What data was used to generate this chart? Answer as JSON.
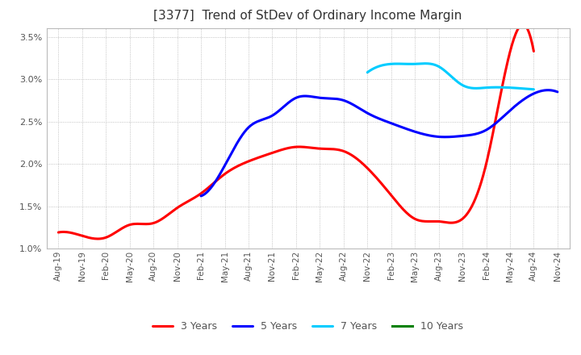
{
  "title": "[3377]  Trend of StDev of Ordinary Income Margin",
  "ylim": [
    0.01,
    0.036
  ],
  "yticks": [
    0.01,
    0.015,
    0.02,
    0.025,
    0.03,
    0.035
  ],
  "x_labels": [
    "Aug-19",
    "Nov-19",
    "Feb-20",
    "May-20",
    "Aug-20",
    "Nov-20",
    "Feb-21",
    "May-21",
    "Aug-21",
    "Nov-21",
    "Feb-22",
    "May-22",
    "Aug-22",
    "Nov-22",
    "Feb-23",
    "May-23",
    "Aug-23",
    "Nov-23",
    "Feb-24",
    "May-24",
    "Aug-24",
    "Nov-24"
  ],
  "s3y_x": [
    0,
    1,
    2,
    3,
    4,
    5,
    6,
    7,
    8,
    9,
    10,
    11,
    12,
    13,
    14,
    15,
    16,
    17,
    18,
    19,
    20
  ],
  "s3y_y": [
    0.0119,
    0.0115,
    0.0113,
    0.0128,
    0.013,
    0.0148,
    0.0165,
    0.0188,
    0.0203,
    0.0213,
    0.022,
    0.0218,
    0.0215,
    0.0195,
    0.0163,
    0.0135,
    0.0132,
    0.0135,
    0.02,
    0.0332,
    0.0333
  ],
  "s5y_x": [
    6,
    7,
    8,
    9,
    10,
    11,
    12,
    13,
    14,
    15,
    16,
    17,
    18,
    19,
    20,
    21
  ],
  "s5y_y": [
    0.0162,
    0.0198,
    0.0243,
    0.0257,
    0.0278,
    0.0278,
    0.0275,
    0.026,
    0.0248,
    0.0238,
    0.0232,
    0.0233,
    0.024,
    0.0263,
    0.0283,
    0.0285
  ],
  "s7y_x": [
    13,
    14,
    15,
    16,
    17,
    18,
    19,
    20
  ],
  "s7y_y": [
    0.0308,
    0.0318,
    0.0318,
    0.0315,
    0.0293,
    0.029,
    0.029,
    0.0288
  ],
  "color_3y": "#FF0000",
  "color_5y": "#0000FF",
  "color_7y": "#00CCFF",
  "color_10y": "#008000",
  "background_color": "#FFFFFF",
  "grid_color": "#AAAAAA",
  "title_fontsize": 11,
  "legend_labels": [
    "3 Years",
    "5 Years",
    "7 Years",
    "10 Years"
  ]
}
